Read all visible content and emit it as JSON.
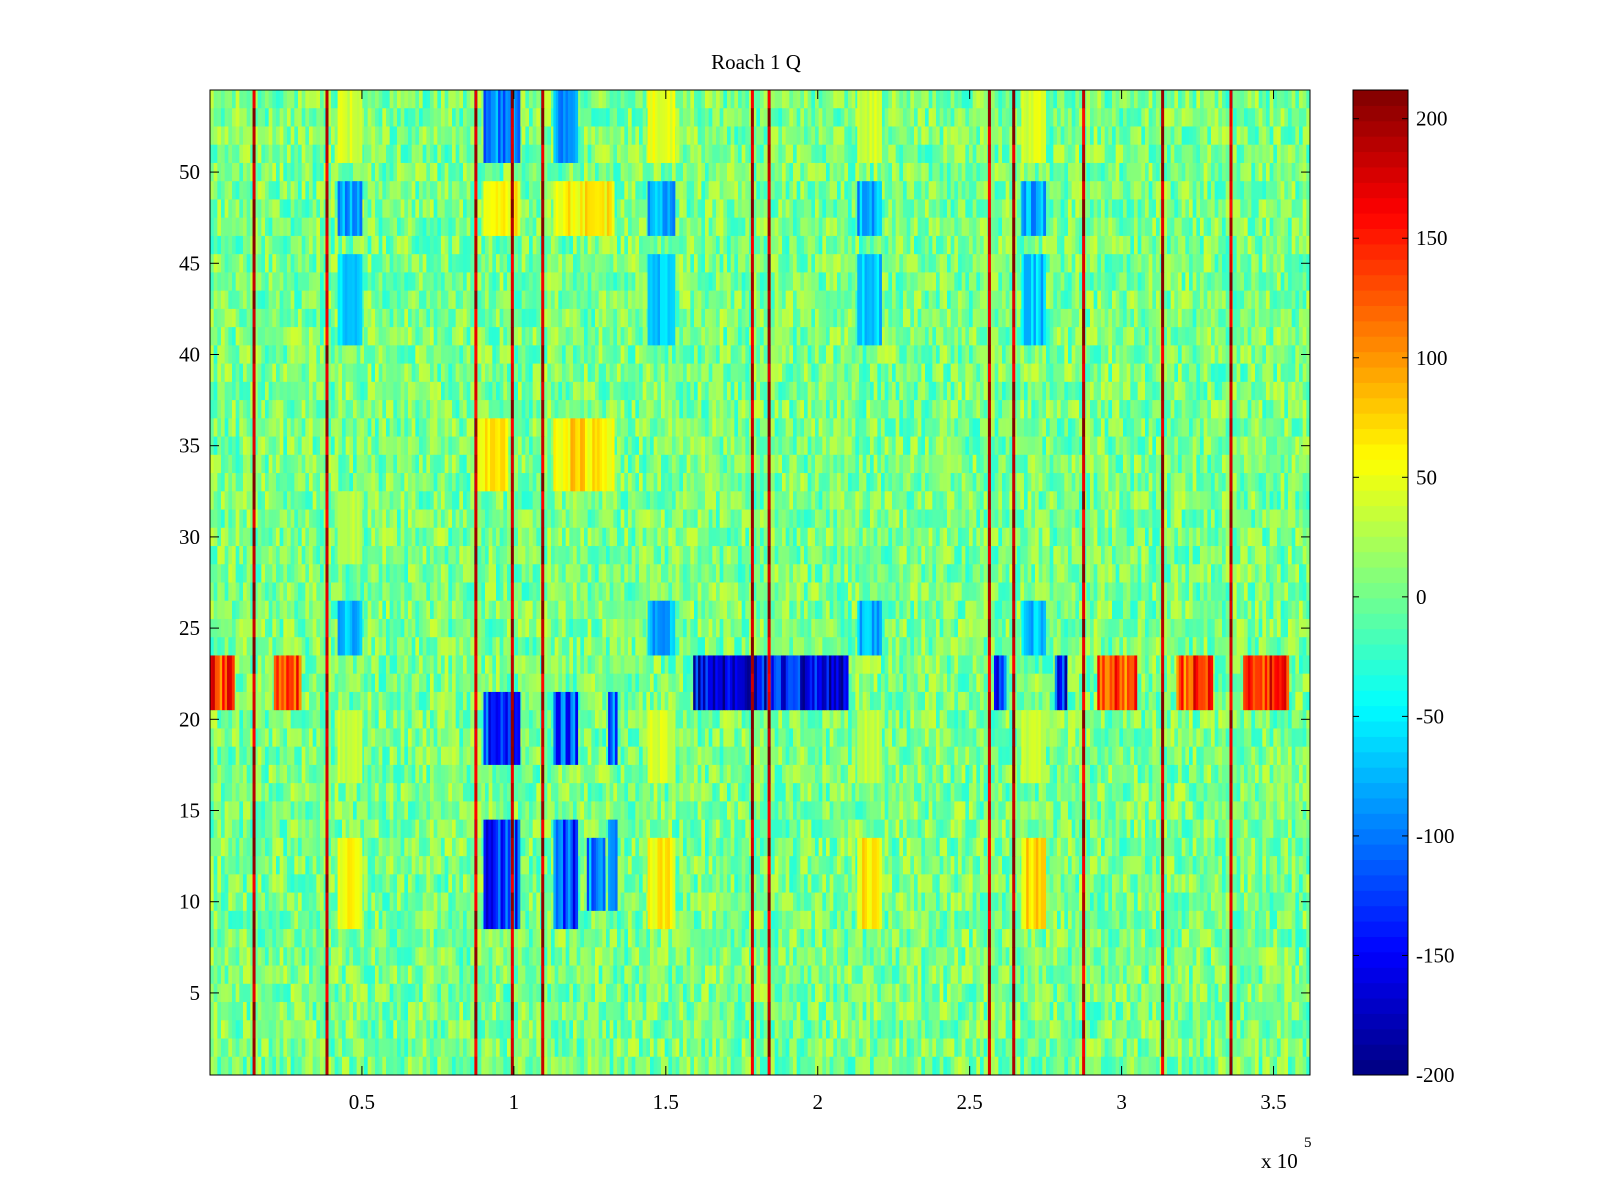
{
  "chart_data": {
    "type": "heatmap",
    "title": "Roach 1 Q",
    "xlabel": "",
    "ylabel": "",
    "x_exponent_label": "x 10",
    "x_exponent_power": "5",
    "xlim": [
      0,
      3.62
    ],
    "ylim": [
      0.5,
      54.5
    ],
    "x_ticks": [
      0.5,
      1,
      1.5,
      2,
      2.5,
      3,
      3.5
    ],
    "x_tick_labels": [
      "0.5",
      "1",
      "1.5",
      "2",
      "2.5",
      "3",
      "3.5"
    ],
    "y_ticks": [
      5,
      10,
      15,
      20,
      25,
      30,
      35,
      40,
      45,
      50
    ],
    "y_tick_labels": [
      "5",
      "10",
      "15",
      "20",
      "25",
      "30",
      "35",
      "40",
      "45",
      "50"
    ],
    "rows": 54,
    "colorbar": {
      "colormap": "jet",
      "clim": [
        -200,
        212
      ],
      "ticks": [
        -200,
        -150,
        -100,
        -50,
        0,
        50,
        100,
        150,
        200
      ],
      "tick_labels": [
        "-200",
        "-150",
        "-100",
        "-50",
        "0",
        "50",
        "100",
        "150",
        "200"
      ]
    },
    "background_value": 0,
    "vertical_stripes": [
      {
        "x": 0.145,
        "value": 212
      },
      {
        "x": 0.385,
        "value": 205
      },
      {
        "x": 0.875,
        "value": 200
      },
      {
        "x": 0.995,
        "value": 212
      },
      {
        "x": 1.095,
        "value": 210
      },
      {
        "x": 1.785,
        "value": 212
      },
      {
        "x": 1.84,
        "value": 212
      },
      {
        "x": 2.565,
        "value": 205
      },
      {
        "x": 2.645,
        "value": 212
      },
      {
        "x": 2.875,
        "value": 205
      },
      {
        "x": 3.135,
        "value": 212
      },
      {
        "x": 3.36,
        "value": 205
      }
    ],
    "regions": [
      {
        "x": [
          0.42,
          0.5
        ],
        "y": [
          47,
          49
        ],
        "value": -95
      },
      {
        "x": [
          0.42,
          0.5
        ],
        "y": [
          41,
          45
        ],
        "value": -75
      },
      {
        "x": [
          0.42,
          0.5
        ],
        "y": [
          24,
          26
        ],
        "value": -85
      },
      {
        "x": [
          0.42,
          0.5
        ],
        "y": [
          9,
          13
        ],
        "value": 65
      },
      {
        "x": [
          0.42,
          0.5
        ],
        "y": [
          51,
          54
        ],
        "value": 45
      },
      {
        "x": [
          0.42,
          0.5
        ],
        "y": [
          17,
          20
        ],
        "value": 40
      },
      {
        "x": [
          0.42,
          0.5
        ],
        "y": [
          29,
          32
        ],
        "value": 35
      },
      {
        "x": [
          0.9,
          1.02
        ],
        "y": [
          9,
          14
        ],
        "value": -150
      },
      {
        "x": [
          0.9,
          1.02
        ],
        "y": [
          18,
          21
        ],
        "value": -150
      },
      {
        "x": [
          0.9,
          1.02
        ],
        "y": [
          51,
          54
        ],
        "value": -110
      },
      {
        "x": [
          0.9,
          1.02
        ],
        "y": [
          47,
          49
        ],
        "value": 75
      },
      {
        "x": [
          0.88,
          0.98
        ],
        "y": [
          33,
          36
        ],
        "value": 70
      },
      {
        "x": [
          1.13,
          1.21
        ],
        "y": [
          9,
          14
        ],
        "value": -140
      },
      {
        "x": [
          1.13,
          1.21
        ],
        "y": [
          18,
          21
        ],
        "value": -140
      },
      {
        "x": [
          1.13,
          1.21
        ],
        "y": [
          51,
          54
        ],
        "value": -95
      },
      {
        "x": [
          1.13,
          1.33
        ],
        "y": [
          47,
          49
        ],
        "value": 75
      },
      {
        "x": [
          1.13,
          1.33
        ],
        "y": [
          33,
          36
        ],
        "value": 80
      },
      {
        "x": [
          1.24,
          1.3
        ],
        "y": [
          10,
          13
        ],
        "value": -110
      },
      {
        "x": [
          1.31,
          1.34
        ],
        "y": [
          10,
          14
        ],
        "value": -125
      },
      {
        "x": [
          1.31,
          1.34
        ],
        "y": [
          18,
          21
        ],
        "value": -125
      },
      {
        "x": [
          1.44,
          1.53
        ],
        "y": [
          47,
          49
        ],
        "value": -90
      },
      {
        "x": [
          1.44,
          1.53
        ],
        "y": [
          41,
          45
        ],
        "value": -75
      },
      {
        "x": [
          1.44,
          1.53
        ],
        "y": [
          24,
          26
        ],
        "value": -85
      },
      {
        "x": [
          1.44,
          1.53
        ],
        "y": [
          9,
          13
        ],
        "value": 75
      },
      {
        "x": [
          1.44,
          1.53
        ],
        "y": [
          51,
          54
        ],
        "value": 55
      },
      {
        "x": [
          1.44,
          1.53
        ],
        "y": [
          17,
          20
        ],
        "value": 45
      },
      {
        "x": [
          2.13,
          2.21
        ],
        "y": [
          47,
          49
        ],
        "value": -95
      },
      {
        "x": [
          2.13,
          2.21
        ],
        "y": [
          41,
          45
        ],
        "value": -80
      },
      {
        "x": [
          2.13,
          2.21
        ],
        "y": [
          24,
          26
        ],
        "value": -85
      },
      {
        "x": [
          2.13,
          2.21
        ],
        "y": [
          9,
          13
        ],
        "value": 80
      },
      {
        "x": [
          2.13,
          2.21
        ],
        "y": [
          51,
          54
        ],
        "value": 45
      },
      {
        "x": [
          2.13,
          2.21
        ],
        "y": [
          17,
          20
        ],
        "value": 40
      },
      {
        "x": [
          2.67,
          2.75
        ],
        "y": [
          47,
          49
        ],
        "value": -95
      },
      {
        "x": [
          2.67,
          2.75
        ],
        "y": [
          41,
          45
        ],
        "value": -80
      },
      {
        "x": [
          2.67,
          2.75
        ],
        "y": [
          24,
          26
        ],
        "value": -85
      },
      {
        "x": [
          2.67,
          2.75
        ],
        "y": [
          9,
          13
        ],
        "value": 80
      },
      {
        "x": [
          2.67,
          2.75
        ],
        "y": [
          51,
          54
        ],
        "value": 50
      },
      {
        "x": [
          2.67,
          2.75
        ],
        "y": [
          17,
          20
        ],
        "value": 40
      }
    ],
    "row_22_band": {
      "y": [
        21,
        23
      ],
      "segments": [
        {
          "x": [
            0.0,
            0.08
          ],
          "value": 170
        },
        {
          "x": [
            0.21,
            0.3
          ],
          "value": 160
        },
        {
          "x": [
            1.59,
            1.8
          ],
          "value": -185
        },
        {
          "x": [
            1.8,
            2.1
          ],
          "value": -175
        },
        {
          "x": [
            2.58,
            2.62
          ],
          "value": -150
        },
        {
          "x": [
            2.78,
            2.82
          ],
          "value": -160
        },
        {
          "x": [
            2.92,
            3.05
          ],
          "value": 150
        },
        {
          "x": [
            3.18,
            3.3
          ],
          "value": 160
        },
        {
          "x": [
            3.4,
            3.55
          ],
          "value": 165
        }
      ]
    }
  }
}
